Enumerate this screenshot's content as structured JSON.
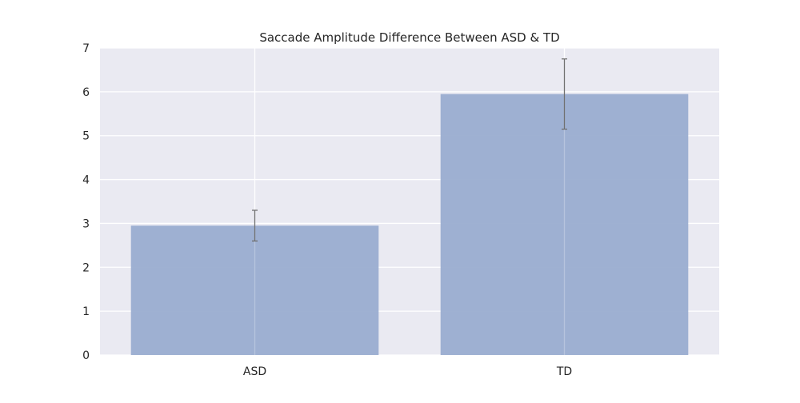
{
  "chart_data": {
    "type": "bar",
    "title": "Saccade Amplitude Difference Between ASD & TD",
    "xlabel": "",
    "ylabel": "",
    "categories": [
      "ASD",
      "TD"
    ],
    "values": [
      2.95,
      5.95
    ],
    "error": [
      0.35,
      0.8
    ],
    "ylim": [
      0,
      7
    ],
    "yticks": [
      "0",
      "1",
      "2",
      "3",
      "4",
      "5",
      "6",
      "7"
    ],
    "grid": true,
    "legend": "none",
    "colors": {
      "bar": "#9aadd0",
      "background": "#eaeaf2",
      "grid": "#ffffff",
      "errorbar": "#707070"
    }
  }
}
